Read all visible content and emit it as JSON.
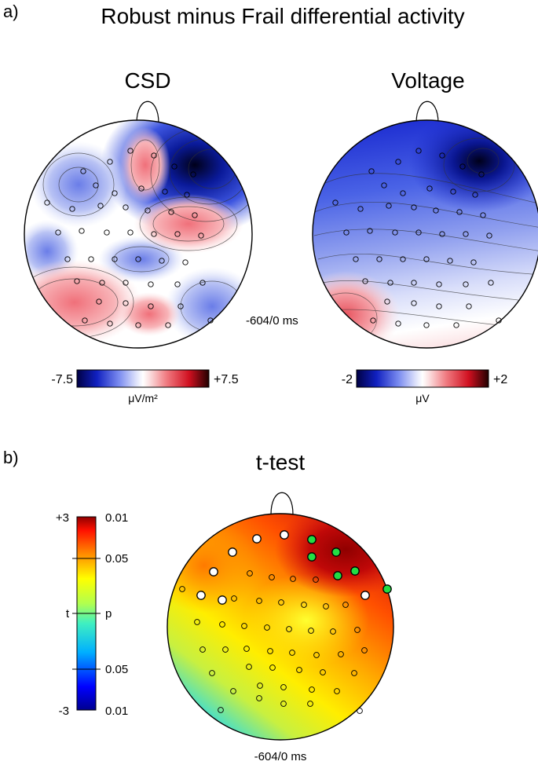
{
  "panel_a": {
    "label": "a)",
    "title": "Robust minus Frail differential activity",
    "time_label": "-604/0 ms",
    "csd": {
      "title": "CSD",
      "colorbar": {
        "min_label": "-7.5",
        "max_label": "+7.5",
        "unit": "μV/m²"
      }
    },
    "voltage": {
      "title": "Voltage",
      "colorbar": {
        "min_label": "-2",
        "max_label": "+2",
        "unit": "μV"
      }
    }
  },
  "panel_b": {
    "label": "b)",
    "title": "t-test",
    "time_label": "-604/0 ms",
    "colorbar": {
      "t_top": "+3",
      "t_mid": "t",
      "t_bottom": "-3",
      "p_top": "0.01",
      "p_upper": "0.05",
      "p_mid": "p",
      "p_lower": "0.05",
      "p_bottom": "0.01"
    },
    "highlight_colors": {
      "positive_significant": "#22dd44",
      "negative_significant": "#ffffff"
    }
  },
  "colors": {
    "blue_dark": "#000066",
    "blue": "#2233dd",
    "red": "#dd2233",
    "red_dark": "#330000"
  }
}
